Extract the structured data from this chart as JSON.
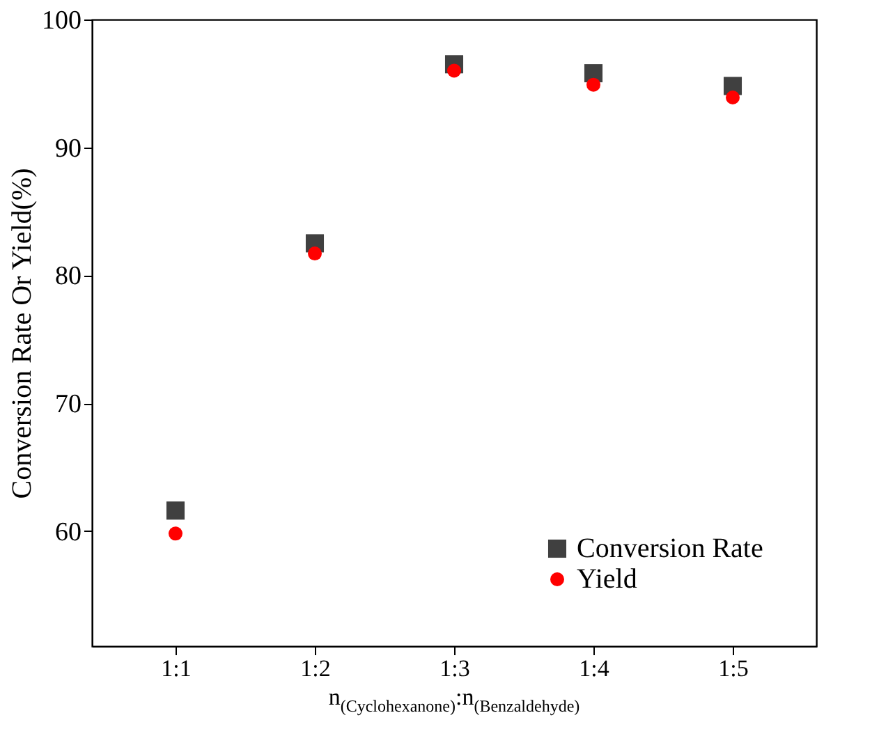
{
  "chart_data": {
    "type": "scatter",
    "xlabel": "n$_{(Cyclohexanone)}$:n$_{(Benzaldehyde)}$",
    "ylabel": "Conversion Rate Or Yield(%)",
    "categories": [
      "1:1",
      "1:2",
      "1:3",
      "1:4",
      "1:5"
    ],
    "series": [
      {
        "name": "Conversion Rate",
        "color": "#404040",
        "marker": "square",
        "values": [
          61.6,
          82.5,
          96.5,
          95.8,
          94.8
        ]
      },
      {
        "name": "Yield",
        "color": "#ff0000",
        "marker": "circle",
        "values": [
          59.8,
          81.7,
          96.0,
          94.9,
          93.9
        ]
      }
    ],
    "ylim": [
      51,
      100
    ],
    "yticks": [
      60,
      70,
      80,
      90,
      100
    ],
    "grid": false,
    "legend": "bottom right"
  }
}
